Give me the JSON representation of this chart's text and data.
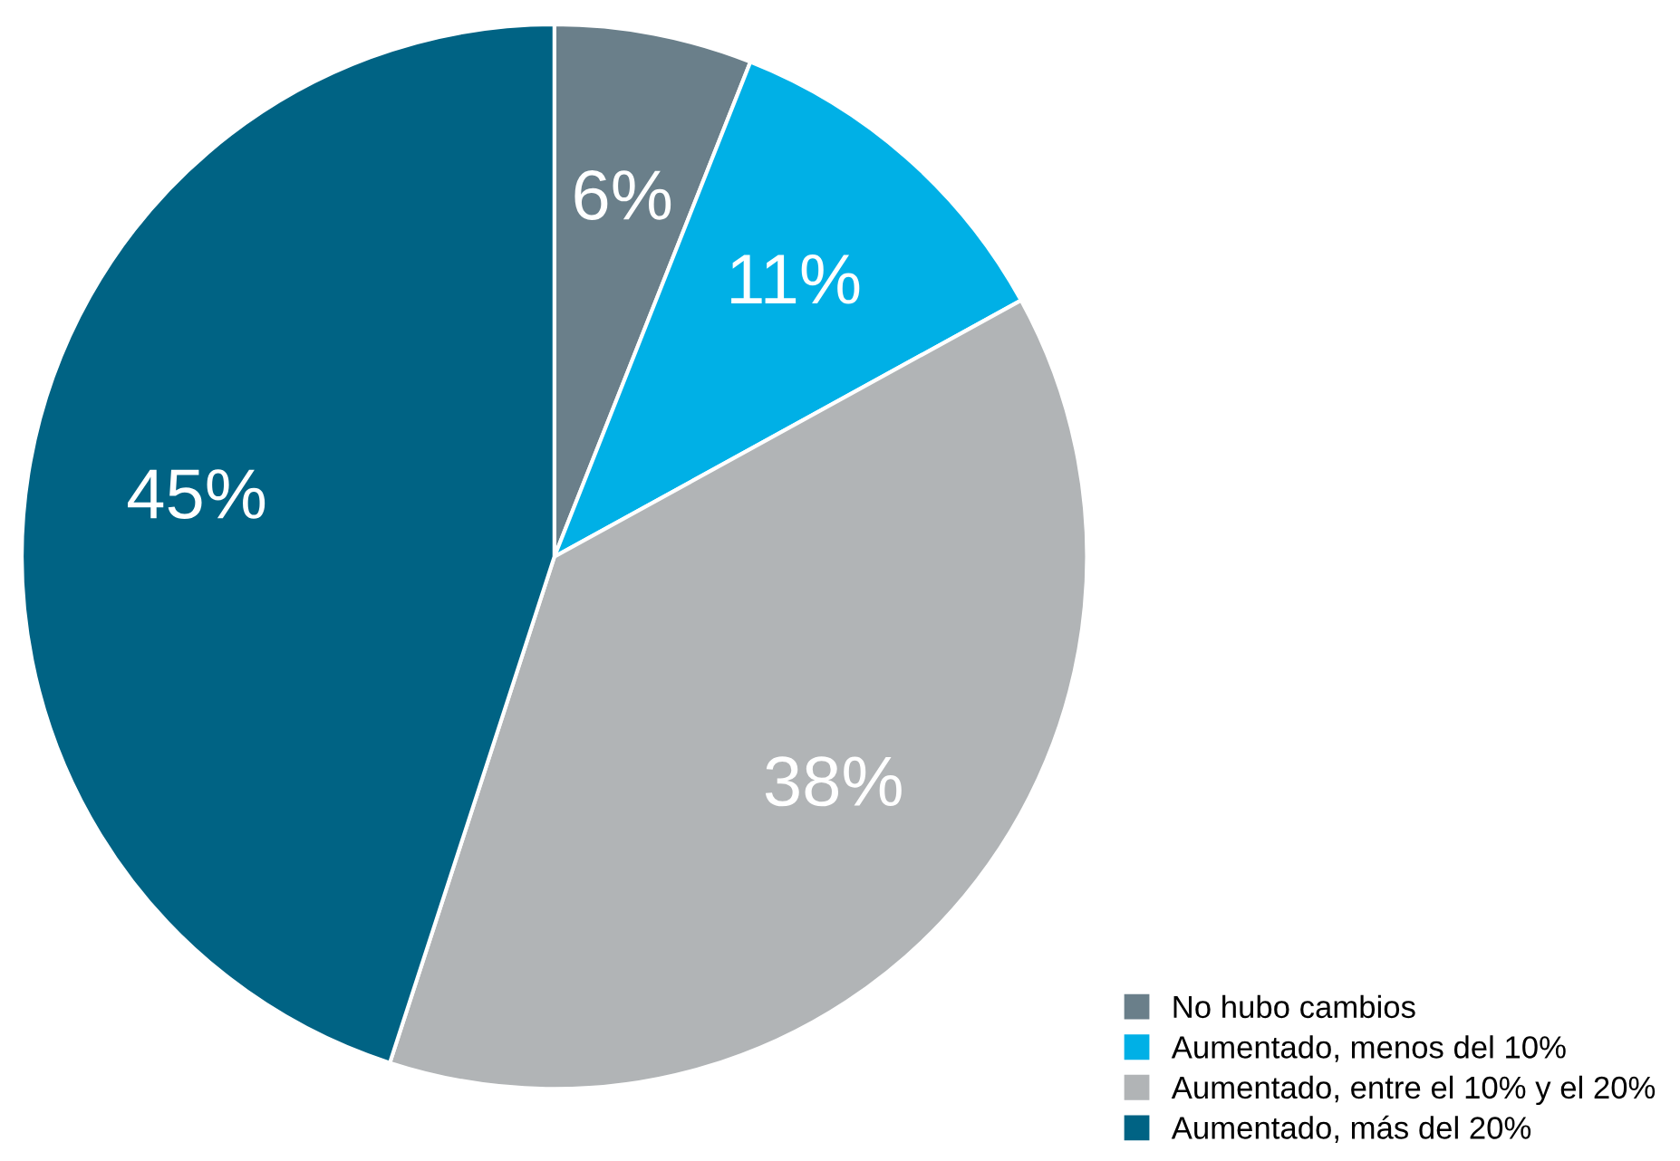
{
  "chart_data": {
    "type": "pie",
    "categories": [
      "No hubo cambios",
      "Aumentado, menos del 10%",
      "Aumentado, entre el 10% y el 20%",
      "Aumentado, más del 20%"
    ],
    "values": [
      6,
      11,
      38,
      45
    ],
    "colors": [
      "#6a7f8a",
      "#00b0e6",
      "#b1b4b6",
      "#006384"
    ],
    "value_labels": [
      "6%",
      "11%",
      "38%",
      "45%"
    ],
    "legend": "bottom right"
  }
}
